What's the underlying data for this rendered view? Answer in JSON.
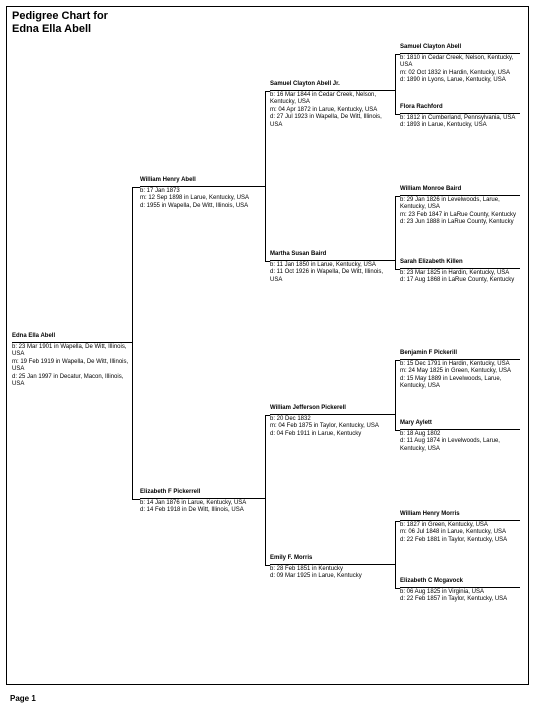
{
  "title_line1": "Pedigree Chart for",
  "title_line2": "Edna Ella Abell",
  "page_label": "Page 1",
  "gen1": {
    "name": "Edna Ella Abell",
    "b": "b: 23 Mar 1901 in Wapella, De Witt, Illinois, USA",
    "m": "m: 19 Feb 1919 in Wapella, De Witt, Illinois, USA",
    "d": "d: 25 Jan 1997 in Decatur, Macon, Illinois, USA"
  },
  "gen2": {
    "f": {
      "name": "William Henry Abell",
      "b": "b: 17 Jan 1873",
      "m": "m: 12 Sep 1898 in Larue, Kentucky, USA",
      "d": "d: 1955 in Wapella, De Witt, Illinois, USA"
    },
    "m": {
      "name": "Elizabeth F Pickerrell",
      "b": "b: 14 Jan 1876 in Larue, Kentucky, USA",
      "d": "d: 14 Feb 1918 in De Witt, Illinois, USA"
    }
  },
  "gen3": {
    "ff": {
      "name": "Samuel Clayton Abell Jr.",
      "b": "b: 16 Mar 1844 in Cedar Creek, Nelson, Kentucky, USA",
      "m": "m: 04 Apr 1872 in Larue, Kentucky, USA",
      "d": "d: 27 Jul 1923 in Wapella, De Witt, Illinois, USA"
    },
    "fm": {
      "name": "Martha Susan Baird",
      "b": "b: 11 Jan 1850 in Larue, Kentucky, USA",
      "d": "d: 11 Oct 1926 in Wapella, De Witt, Illinois, USA"
    },
    "mf": {
      "name": "William Jefferson Pickerell",
      "b": "b: 20 Dec 1832",
      "m": "m: 04 Feb 1875 in Taylor, Kentucky, USA",
      "d": "d: 04 Feb 1911 in Larue, Kentucky"
    },
    "mm": {
      "name": "Emily F. Morris",
      "b": "b: 28 Feb 1851 in Kentucky",
      "d": "d: 09 Mar 1925 in Larue, Kentucky"
    }
  },
  "gen4": {
    "fff": {
      "name": "Samuel Clayton Abell",
      "b": "b: 1810 in Cedar Creek, Nelson, Kentucky, USA",
      "m": "m: 02 Oct 1832 in Hardin, Kentucky, USA",
      "d": "d: 1890 in Lyons, Larue, Kentucky, USA"
    },
    "ffm": {
      "name": "Flora Rachford",
      "b": "b: 1812 in Cumberland, Pennsylvania, USA",
      "d": "d: 1893 in Larue, Kentucky, USA"
    },
    "fmf": {
      "name": "William Monroe Baird",
      "b": "b: 29 Jan 1826 in Levelwoods, Larue, Kentucky, USA",
      "m": "m: 23 Feb 1847 in LaRue County, Kentucky",
      "d": "d: 23 Jun 1888 in LaRue County, Kentucky"
    },
    "fmm": {
      "name": "Sarah Elizabeth Killen",
      "b": "b: 23 Mar 1825 in Hardin, Kentucky, USA",
      "d": "d: 17 Aug 1868 in LaRue County, Kentucky"
    },
    "mff": {
      "name": "Benjamin F Pickerill",
      "b": "b: 15 Dec 1791 in Hardin, Kentucky, USA",
      "m": "m: 24 May 1825 in Green, Kentucky, USA",
      "d": "d: 15 May 1889 in Levelwoods, Larue, Kentucky, USA"
    },
    "mfm": {
      "name": "Mary Aylett",
      "b": "b: 18 Aug 1802",
      "d": "d: 11 Aug 1874 in Levelwoods, Larue, Kentucky, USA"
    },
    "mmf": {
      "name": "William Henry Morris",
      "b": "b: 1827 in Green, Kentucky, USA",
      "m": "m: 06 Jul 1848 in Larue, Kentucky, USA",
      "d": "d: 22 Feb 1881 in Taylor, Kentucky, USA"
    },
    "mmm": {
      "name": "Elizabeth C Mcgavock",
      "b": "b: 06 Aug 1825 in Virginia, USA",
      "d": "d: 22 Feb 1857 in Taylor, Kentucky, USA"
    }
  },
  "layout": {
    "col": {
      "g1": 12,
      "g2": 140,
      "g3": 270,
      "g4": 400
    },
    "width": {
      "g1": 120,
      "g2": 125,
      "g3": 125,
      "g4": 120
    },
    "lineY": {
      "g1": 343,
      "g2f": 187,
      "g2m": 499,
      "g3ff": 91,
      "g3fm": 261,
      "g3mf": 415,
      "g3mm": 565,
      "g4fff": 54,
      "g4ffm": 114,
      "g4fmf": 196,
      "g4fmm": 269,
      "g4mff": 360,
      "g4mfm": 430,
      "g4mmf": 521,
      "g4mmm": 588
    }
  }
}
